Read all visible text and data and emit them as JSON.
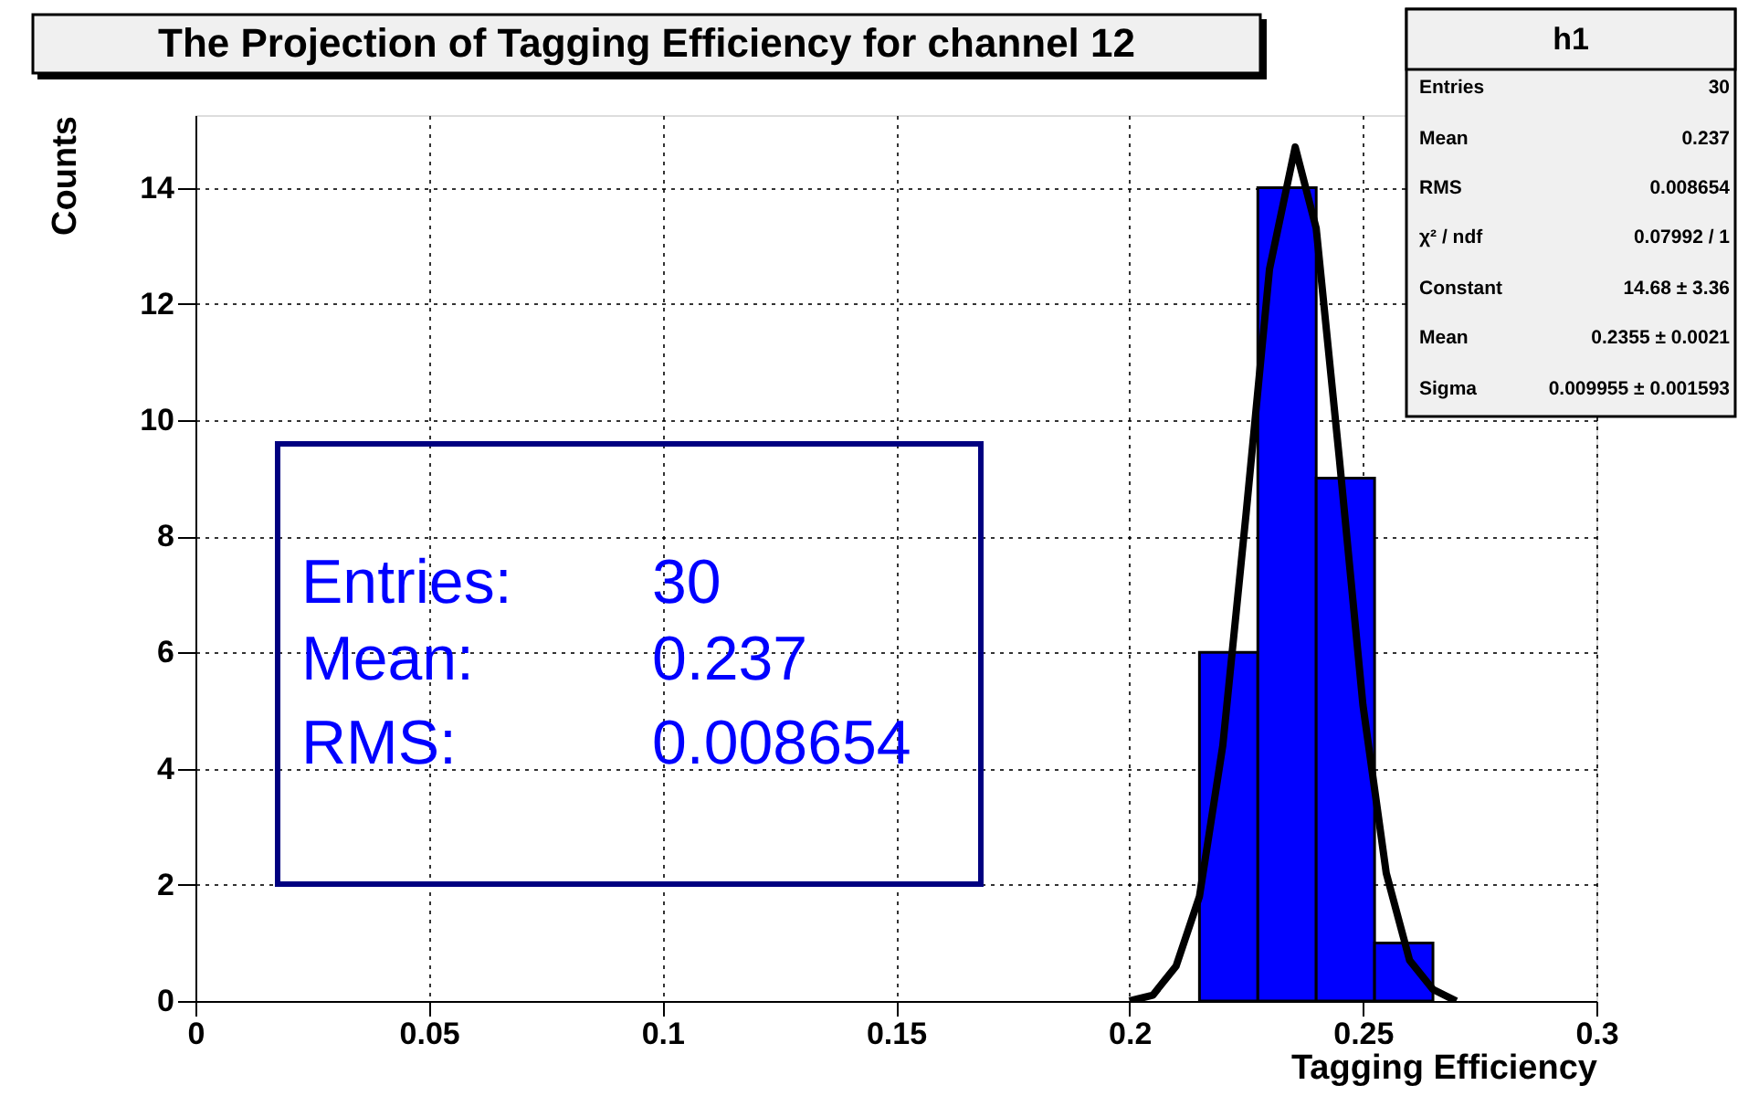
{
  "chart_data": {
    "type": "histogram",
    "title": "The Projection of Tagging Efficiency for channel 12",
    "xlabel": "Tagging Efficiency",
    "ylabel": "Counts",
    "bins": [
      0.215,
      0.2275,
      0.24,
      0.2525,
      0.265
    ],
    "values": [
      6,
      14,
      9,
      1
    ],
    "color": "#0000ff",
    "series": [
      {
        "type": "line",
        "color": "#000000",
        "x": [
          0.2,
          0.205,
          0.21,
          0.215,
          0.22,
          0.225,
          0.23,
          0.2355,
          0.24,
          0.245,
          0.25,
          0.255,
          0.26,
          0.265,
          0.27
        ],
        "values": [
          0.0,
          0.1,
          0.6,
          1.8,
          4.4,
          8.4,
          12.6,
          14.7,
          13.3,
          9.3,
          5.1,
          2.2,
          0.7,
          0.2,
          0.0
        ]
      }
    ],
    "xlim": [
      0,
      0.3
    ],
    "ylim": [
      0,
      15.25
    ],
    "xticks": [
      0,
      0.05,
      0.1,
      0.15,
      0.2,
      0.25,
      0.3
    ],
    "yticks": [
      0,
      2,
      4,
      6,
      8,
      10,
      12,
      14
    ],
    "grid": true,
    "annotations": [
      "h1",
      "Entries",
      "30",
      "Mean",
      "0.237",
      "RMS",
      "0.008654",
      "χ² / ndf",
      "0.07992 / 1",
      "Constant",
      "14.68 ± 3.36",
      "Mean",
      "0.2355 ± 0.0021",
      "Sigma",
      "0.009955 ± 0.001593",
      "Entries:",
      "30",
      "Mean:",
      "0.237",
      "RMS:",
      "0.008654"
    ]
  }
}
